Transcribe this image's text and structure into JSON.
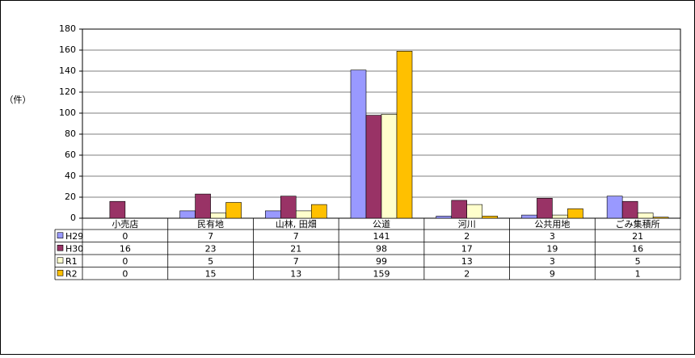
{
  "chart_data": {
    "type": "bar",
    "y_label": "（件）",
    "categories": [
      "小売店",
      "民有地",
      "山林, 田畑",
      "公道",
      "河川",
      "公共用地",
      "ごみ集積所"
    ],
    "series": [
      {
        "name": "H29",
        "color": "#9999ff",
        "values": [
          0,
          7,
          7,
          141,
          2,
          3,
          21
        ]
      },
      {
        "name": "H30",
        "color": "#993366",
        "values": [
          16,
          23,
          21,
          98,
          17,
          19,
          16
        ]
      },
      {
        "name": "R1",
        "color": "#ffffcc",
        "values": [
          0,
          5,
          7,
          99,
          13,
          3,
          5
        ]
      },
      {
        "name": "R2",
        "color": "#ffc000",
        "values": [
          0,
          15,
          13,
          159,
          2,
          9,
          1
        ]
      }
    ],
    "ylim": [
      0,
      180
    ],
    "yticks": [
      0,
      20,
      40,
      60,
      80,
      100,
      120,
      140,
      160,
      180
    ],
    "grid": true
  }
}
